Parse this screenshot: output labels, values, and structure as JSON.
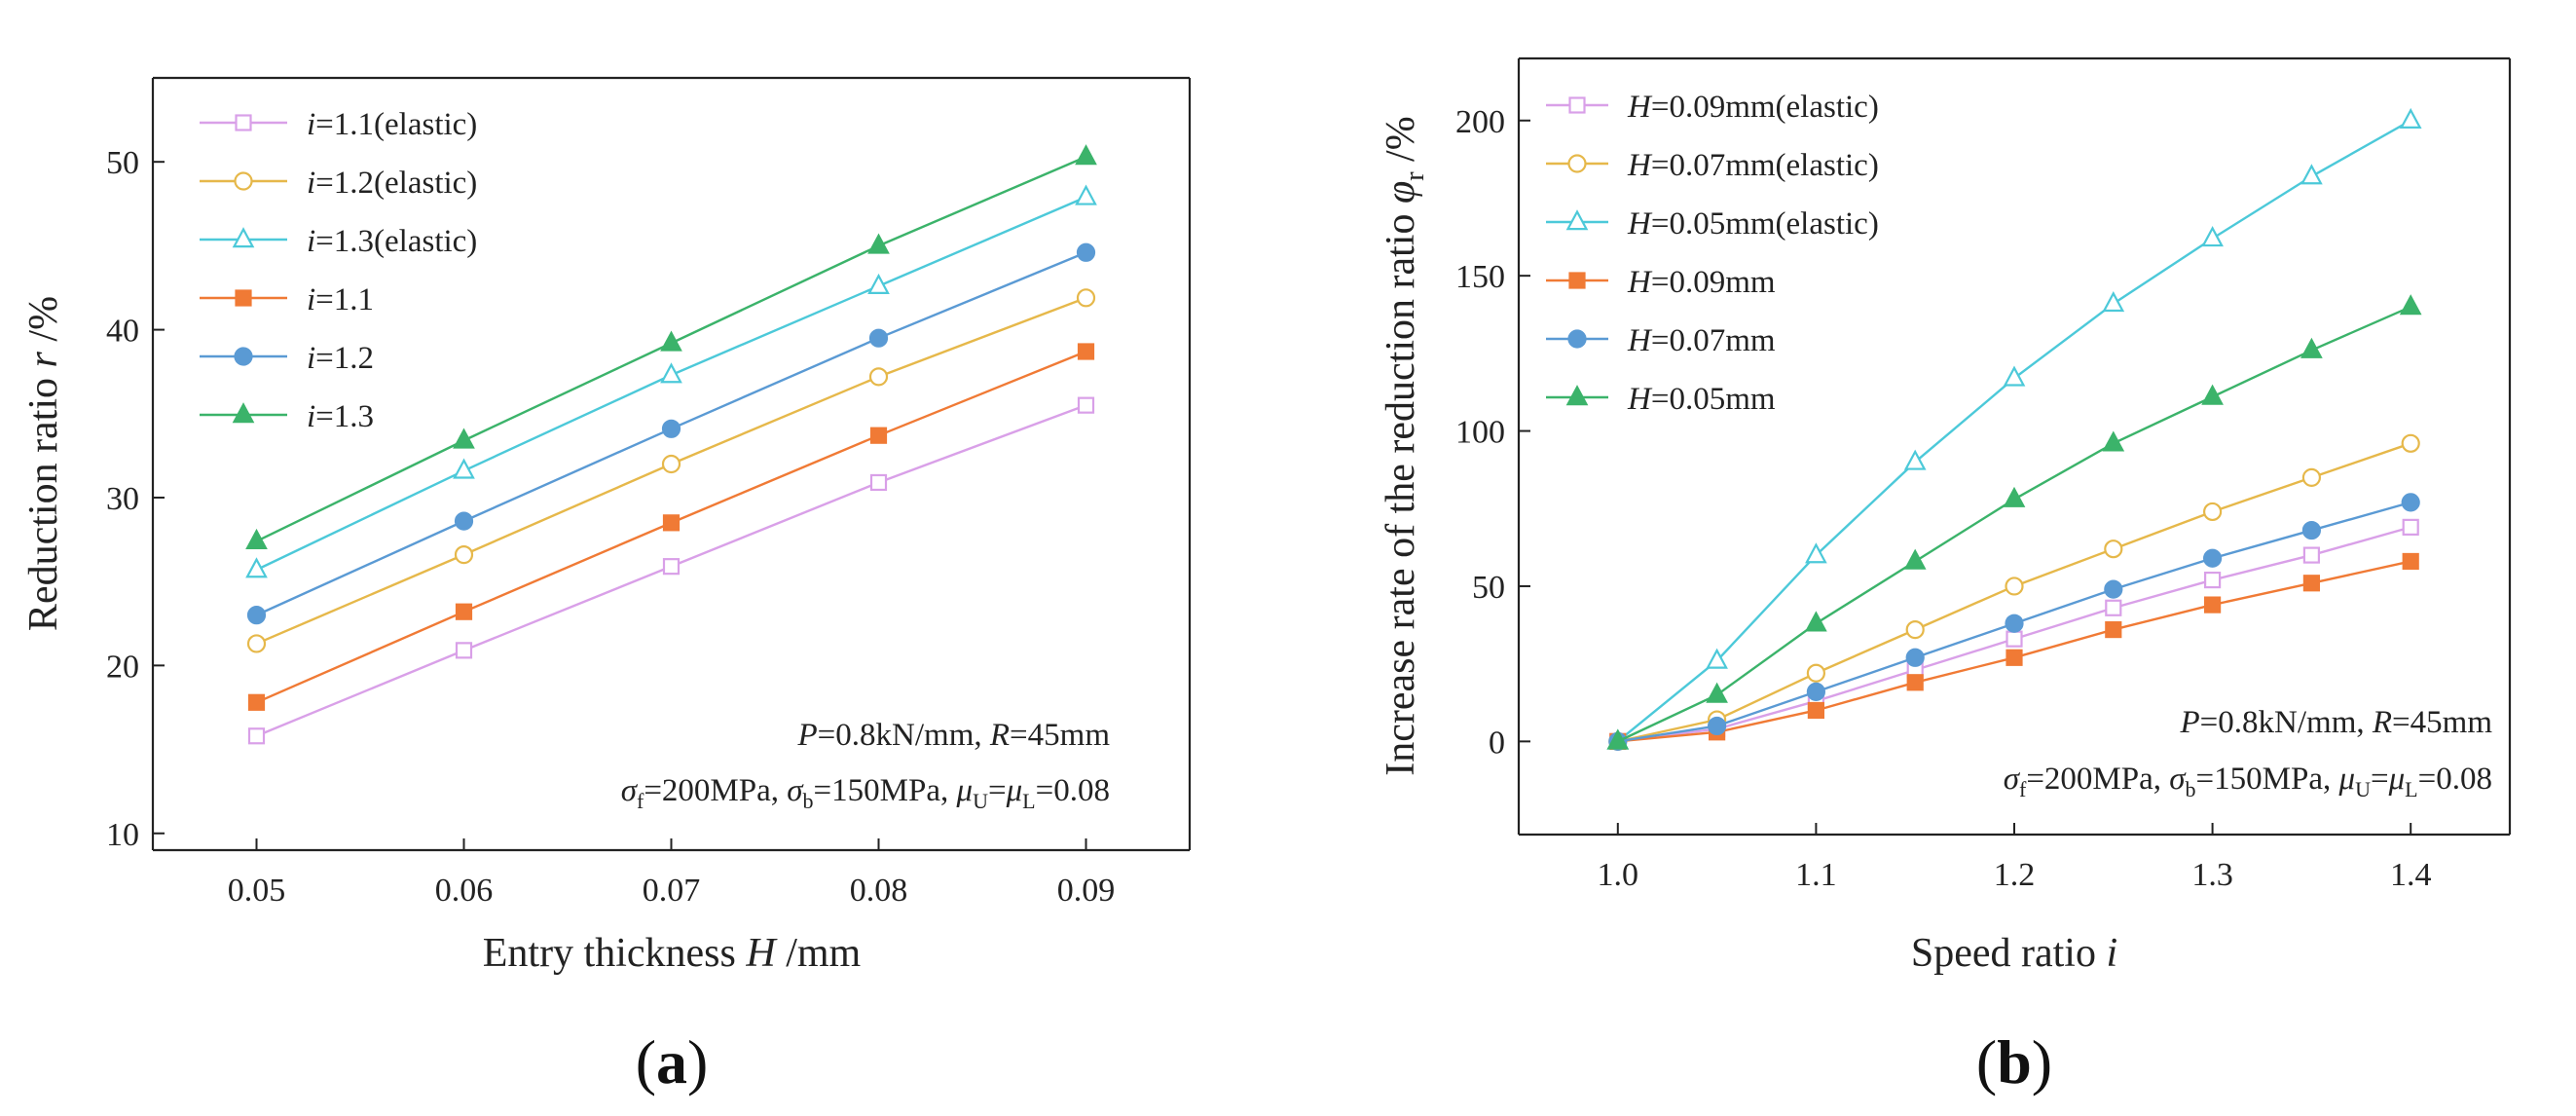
{
  "chart_data": [
    {
      "type": "line",
      "panel_label": "(a)",
      "xlabel": "Entry thickness H /mm",
      "ylabel": "Reduction ratio r /%",
      "xlim": [
        0.045,
        0.095
      ],
      "ylim": [
        9,
        55
      ],
      "xticks": [
        0.05,
        0.06,
        0.07,
        0.08,
        0.09
      ],
      "xtick_labels": [
        "0.05",
        "0.06",
        "0.07",
        "0.08",
        "0.09"
      ],
      "yticks": [
        10,
        20,
        30,
        40,
        50
      ],
      "ytick_labels": [
        "10",
        "20",
        "30",
        "40",
        "50"
      ],
      "x": [
        0.05,
        0.06,
        0.07,
        0.08,
        0.09
      ],
      "legend_position": "top-left",
      "annotation": [
        "P=0.8kN/mm, R=45mm",
        "σf=200MPa, σb=150MPa, μU=μL=0.08"
      ],
      "series": [
        {
          "name": "i=1.1(elastic)",
          "values": [
            15.8,
            20.9,
            25.9,
            30.9,
            35.5
          ],
          "color": "#d9a0e8",
          "marker": "square-open"
        },
        {
          "name": "i=1.2(elastic)",
          "values": [
            21.3,
            26.6,
            32.0,
            37.2,
            41.9
          ],
          "color": "#e6b84a",
          "marker": "circle-open"
        },
        {
          "name": "i=1.3(elastic)",
          "values": [
            25.7,
            31.6,
            37.3,
            42.6,
            47.9
          ],
          "color": "#4cc9d9",
          "marker": "triangle-open"
        },
        {
          "name": "i=1.1",
          "values": [
            17.8,
            23.2,
            28.5,
            33.7,
            38.7
          ],
          "color": "#f07a35",
          "marker": "square-filled"
        },
        {
          "name": "i=1.2",
          "values": [
            23.0,
            28.6,
            34.1,
            39.5,
            44.6
          ],
          "color": "#5a9ad4",
          "marker": "circle-filled"
        },
        {
          "name": "i=1.3",
          "values": [
            27.4,
            33.4,
            39.2,
            45.0,
            50.3
          ],
          "color": "#3bb36a",
          "marker": "triangle-filled"
        }
      ]
    },
    {
      "type": "line",
      "panel_label": "(b)",
      "xlabel": "Speed ratio i",
      "ylabel": "Increase rate of the reduction ratio φr /%",
      "xlim": [
        0.95,
        1.45
      ],
      "ylim": [
        -30,
        220
      ],
      "xticks": [
        1.0,
        1.1,
        1.2,
        1.3,
        1.4
      ],
      "xtick_labels": [
        "1.0",
        "1.1",
        "1.2",
        "1.3",
        "1.4"
      ],
      "yticks": [
        0,
        50,
        100,
        150,
        200
      ],
      "ytick_labels": [
        "0",
        "50",
        "100",
        "150",
        "200"
      ],
      "x": [
        1.0,
        1.05,
        1.1,
        1.15,
        1.2,
        1.25,
        1.3,
        1.35,
        1.4
      ],
      "legend_position": "top-left",
      "annotation": [
        "P=0.8kN/mm, R=45mm",
        "σf=200MPa, σb=150MPa, μU=μL=0.08"
      ],
      "series": [
        {
          "name": "H=0.09mm(elastic)",
          "values": [
            0,
            4,
            13,
            23,
            33,
            43,
            52,
            60,
            69
          ],
          "color": "#d9a0e8",
          "marker": "square-open"
        },
        {
          "name": "H=0.07mm(elastic)",
          "values": [
            0,
            7,
            22,
            36,
            50,
            62,
            74,
            85,
            96
          ],
          "color": "#e6b84a",
          "marker": "circle-open"
        },
        {
          "name": "H=0.05mm(elastic)",
          "values": [
            0,
            26,
            60,
            90,
            117,
            141,
            162,
            182,
            200
          ],
          "color": "#4cc9d9",
          "marker": "triangle-open"
        },
        {
          "name": "H=0.09mm",
          "values": [
            0,
            3,
            10,
            19,
            27,
            36,
            44,
            51,
            58
          ],
          "color": "#f07a35",
          "marker": "square-filled"
        },
        {
          "name": "H=0.07mm",
          "values": [
            0,
            5,
            16,
            27,
            38,
            49,
            59,
            68,
            77
          ],
          "color": "#5a9ad4",
          "marker": "circle-filled"
        },
        {
          "name": "H=0.05mm",
          "values": [
            0,
            15,
            38,
            58,
            78,
            96,
            111,
            126,
            140
          ],
          "color": "#3bb36a",
          "marker": "triangle-filled"
        }
      ]
    }
  ]
}
